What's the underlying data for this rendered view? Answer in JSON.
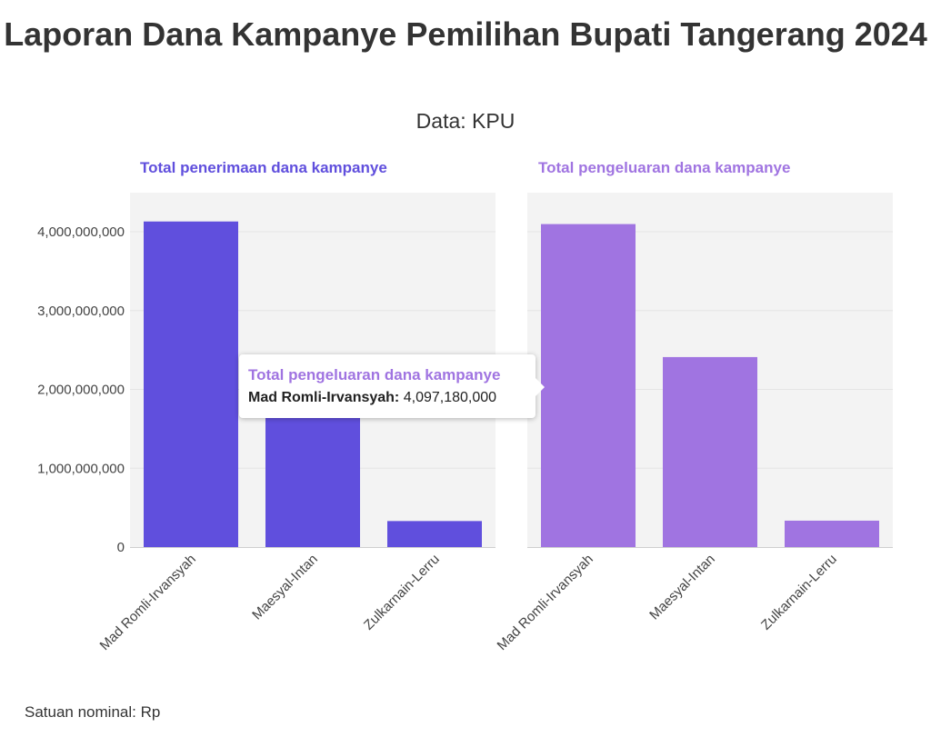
{
  "title": "Laporan Dana Kampanye Pemilihan Bupati Tangerang 2024",
  "subtitle": "Data: KPU",
  "footnote": "Satuan nominal: Rp",
  "colors": {
    "receipts": "#604fdd",
    "expenses": "#a074e1",
    "panel_bg": "#f3f3f3",
    "grid": "#e4e4e4"
  },
  "tooltip": {
    "series": "Total pengeluaran dana kampanye",
    "category": "Mad Romli-Irvansyah:",
    "value": "4,097,180,000"
  },
  "chart_data": [
    {
      "type": "bar",
      "title": "Total penerimaan dana kampanye",
      "categories": [
        "Mad Romli-Irvansyah",
        "Maesyal-Intan",
        "Zulkarnain-Lerru"
      ],
      "values": [
        4130000000,
        1680000000,
        330000000
      ],
      "ylim": [
        0,
        4500000000
      ],
      "yticks": [
        0,
        1000000000,
        2000000000,
        3000000000,
        4000000000
      ],
      "ytick_labels": [
        "0",
        "1,000,000,000",
        "2,000,000,000",
        "3,000,000,000",
        "4,000,000,000"
      ],
      "grid": true
    },
    {
      "type": "bar",
      "title": "Total pengeluaran dana kampanye",
      "categories": [
        "Mad Romli-Irvansyah",
        "Maesyal-Intan",
        "Zulkarnain-Lerru"
      ],
      "values": [
        4097180000,
        2410000000,
        335000000
      ],
      "ylim": [
        0,
        4500000000
      ],
      "yticks": [
        0,
        1000000000,
        2000000000,
        3000000000,
        4000000000
      ],
      "grid": true
    }
  ]
}
